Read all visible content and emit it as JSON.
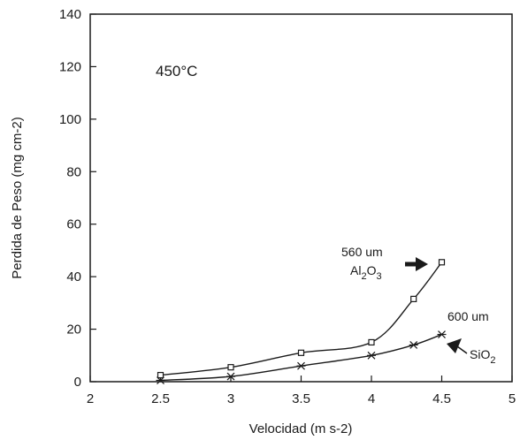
{
  "chart_data": {
    "type": "line",
    "title": "",
    "xlabel": "Velocidad (m s-2)",
    "ylabel": "Perdida de Peso (mg cm-2)",
    "xlim": [
      2,
      5
    ],
    "ylim": [
      0,
      140
    ],
    "x_ticks": [
      2,
      2.5,
      3,
      3.5,
      4,
      4.5,
      5
    ],
    "x_tick_labels": [
      "2",
      "2.5",
      "3",
      "3.5",
      "4",
      "4.5",
      "5"
    ],
    "y_ticks": [
      0,
      20,
      40,
      60,
      80,
      100,
      120,
      140
    ],
    "y_tick_labels": [
      "0",
      "20",
      "40",
      "60",
      "80",
      "100",
      "120",
      "140"
    ],
    "grid": false,
    "legend": "none",
    "annotations": {
      "temperature": "450°C",
      "al2o3_size": "560 um",
      "sio2_size": "600 um"
    },
    "series": [
      {
        "label_main": "Al",
        "label_sub1": "2",
        "label_mid": "O",
        "label_sub2": "3",
        "marker": "square",
        "x": [
          2.5,
          3,
          3.5,
          4,
          4.3,
          4.5
        ],
        "values": [
          2.5,
          5.5,
          11,
          15,
          31.5,
          45.5
        ]
      },
      {
        "label_main": "SiO",
        "label_sub1": "2",
        "marker": "asterisk",
        "x": [
          2.5,
          3,
          3.5,
          4,
          4.3,
          4.5
        ],
        "values": [
          0.5,
          2,
          6,
          10,
          14,
          18
        ]
      }
    ],
    "colors": {
      "line": "#1a1a1a",
      "frame": "#1a1a1a"
    }
  }
}
